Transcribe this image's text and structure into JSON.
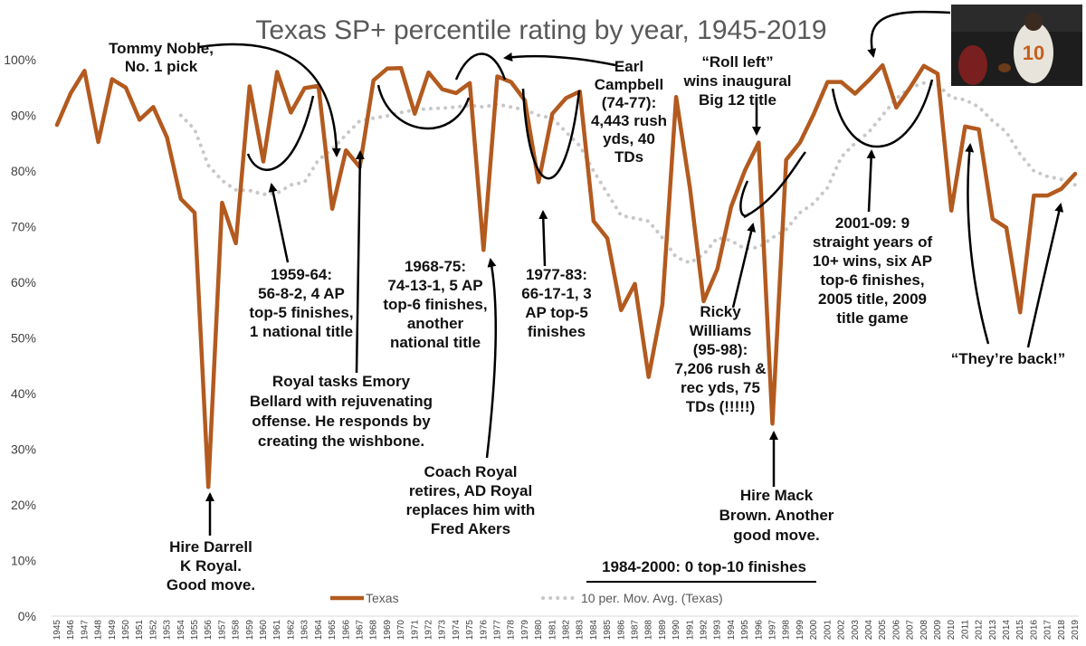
{
  "chart_data": {
    "type": "line",
    "title": "Texas SP+ percentile rating by year, 1945-2019",
    "xlabel": "",
    "ylabel": "",
    "ylim": [
      0,
      100
    ],
    "y_ticks": [
      "0%",
      "10%",
      "20%",
      "30%",
      "40%",
      "50%",
      "60%",
      "70%",
      "80%",
      "90%",
      "100%"
    ],
    "grid": false,
    "legend_position": "bottom",
    "x": [
      1945,
      1946,
      1947,
      1948,
      1949,
      1950,
      1951,
      1952,
      1953,
      1954,
      1955,
      1956,
      1957,
      1958,
      1959,
      1960,
      1961,
      1962,
      1963,
      1964,
      1965,
      1966,
      1967,
      1968,
      1969,
      1970,
      1971,
      1972,
      1973,
      1974,
      1975,
      1976,
      1977,
      1978,
      1979,
      1980,
      1981,
      1982,
      1983,
      1984,
      1985,
      1986,
      1987,
      1988,
      1989,
      1990,
      1991,
      1992,
      1993,
      1994,
      1995,
      1996,
      1997,
      1998,
      1999,
      2000,
      2001,
      2002,
      2003,
      2004,
      2005,
      2006,
      2007,
      2008,
      2009,
      2010,
      2011,
      2012,
      2013,
      2014,
      2015,
      2016,
      2017,
      2018,
      2019
    ],
    "series": [
      {
        "name": "Texas",
        "color": "#b35a1f",
        "style": "solid",
        "values": [
          88.3,
          94.0,
          98.0,
          85.2,
          96.5,
          95.0,
          89.2,
          91.5,
          86.0,
          75.0,
          72.5,
          23.2,
          74.3,
          67.0,
          95.2,
          81.7,
          97.8,
          90.5,
          94.9,
          95.3,
          73.2,
          83.7,
          80.7,
          96.3,
          98.4,
          98.5,
          90.3,
          97.7,
          94.7,
          94.0,
          95.8,
          65.8,
          97.0,
          96.0,
          92.7,
          78.0,
          90.3,
          93.1,
          94.3,
          71.0,
          67.9,
          55.0,
          59.7,
          43.0,
          56.0,
          93.3,
          77.0,
          56.6,
          62.4,
          73.6,
          80.1,
          85.1,
          34.6,
          82.0,
          85.1,
          90.2,
          96.0,
          96.0,
          93.9,
          96.3,
          99.0,
          91.4,
          95.0,
          98.9,
          97.5,
          72.9,
          88.0,
          87.5,
          71.4,
          69.8,
          54.6,
          75.6,
          75.6,
          76.8,
          79.5
        ]
      },
      {
        "name": "10 per. Mov. Avg. (Texas)",
        "color": "#c8c8c8",
        "style": "dotted",
        "values": [
          null,
          null,
          null,
          null,
          null,
          null,
          null,
          null,
          null,
          90.0,
          87.5,
          81.0,
          78.3,
          76.6,
          76.5,
          75.8,
          76.0,
          77.5,
          78.0,
          82.0,
          83.9,
          86.5,
          89.0,
          89.5,
          89.9,
          90.5,
          91.0,
          91.2,
          91.3,
          91.5,
          91.8,
          91.5,
          92.0,
          91.5,
          91.0,
          90.0,
          89.5,
          87.0,
          84.5,
          80.0,
          76.0,
          72.0,
          71.5,
          71.0,
          68.0,
          64.5,
          63.5,
          65.0,
          68.0,
          67.5,
          66.0,
          66.3,
          68.0,
          69.5,
          72.5,
          74.2,
          77.0,
          82.5,
          85.0,
          87.0,
          90.0,
          93.0,
          95.0,
          95.8,
          95.5,
          93.2,
          92.8,
          91.5,
          89.0,
          87.0,
          83.0,
          80.0,
          79.0,
          78.5,
          77.5
        ]
      }
    ],
    "annotations": [
      {
        "lines": [
          "Tommy Noble,",
          "No. 1 pick"
        ]
      },
      {
        "lines": [
          "1959-64:",
          "56-8-2, 4 AP",
          "top-5 finishes,",
          "1 national title"
        ]
      },
      {
        "lines": [
          "Hire Darrell",
          "K Royal.",
          "Good move."
        ]
      },
      {
        "lines": [
          "Royal tasks Emory",
          "Bellard with rejuvenating",
          "offense. He responds by",
          "creating the wishbone."
        ]
      },
      {
        "lines": [
          "1968-75:",
          "74-13-1, 5 AP",
          "top-6 finishes,",
          "another",
          "national title"
        ]
      },
      {
        "lines": [
          "Coach Royal",
          "retires, AD Royal",
          "replaces him with",
          "Fred Akers"
        ]
      },
      {
        "lines": [
          "1977-83:",
          "66-17-1, 3",
          "AP top-5",
          "finishes"
        ]
      },
      {
        "lines": [
          "Earl",
          "Campbell",
          "(74-77):",
          "4,443 rush",
          "yds, 40",
          "TDs"
        ]
      },
      {
        "lines": [
          "“Roll left”",
          "wins inaugural",
          "Big 12 title"
        ]
      },
      {
        "lines": [
          "Ricky",
          "Williams",
          "(95-98):",
          "7,206 rush &",
          "rec yds, 75",
          "TDs (!!!!!)"
        ]
      },
      {
        "lines": [
          "Hire Mack",
          "Brown. Another",
          "good move."
        ]
      },
      {
        "lines": [
          "1984-2000: 0 top-10 finishes"
        ]
      },
      {
        "lines": [
          "2001-09: 9",
          "straight years of",
          "10+ wins, six AP",
          "top-6 finishes,",
          "2005 title, 2009",
          "title game"
        ]
      },
      {
        "lines": [
          "“They’re back!”"
        ]
      }
    ]
  }
}
